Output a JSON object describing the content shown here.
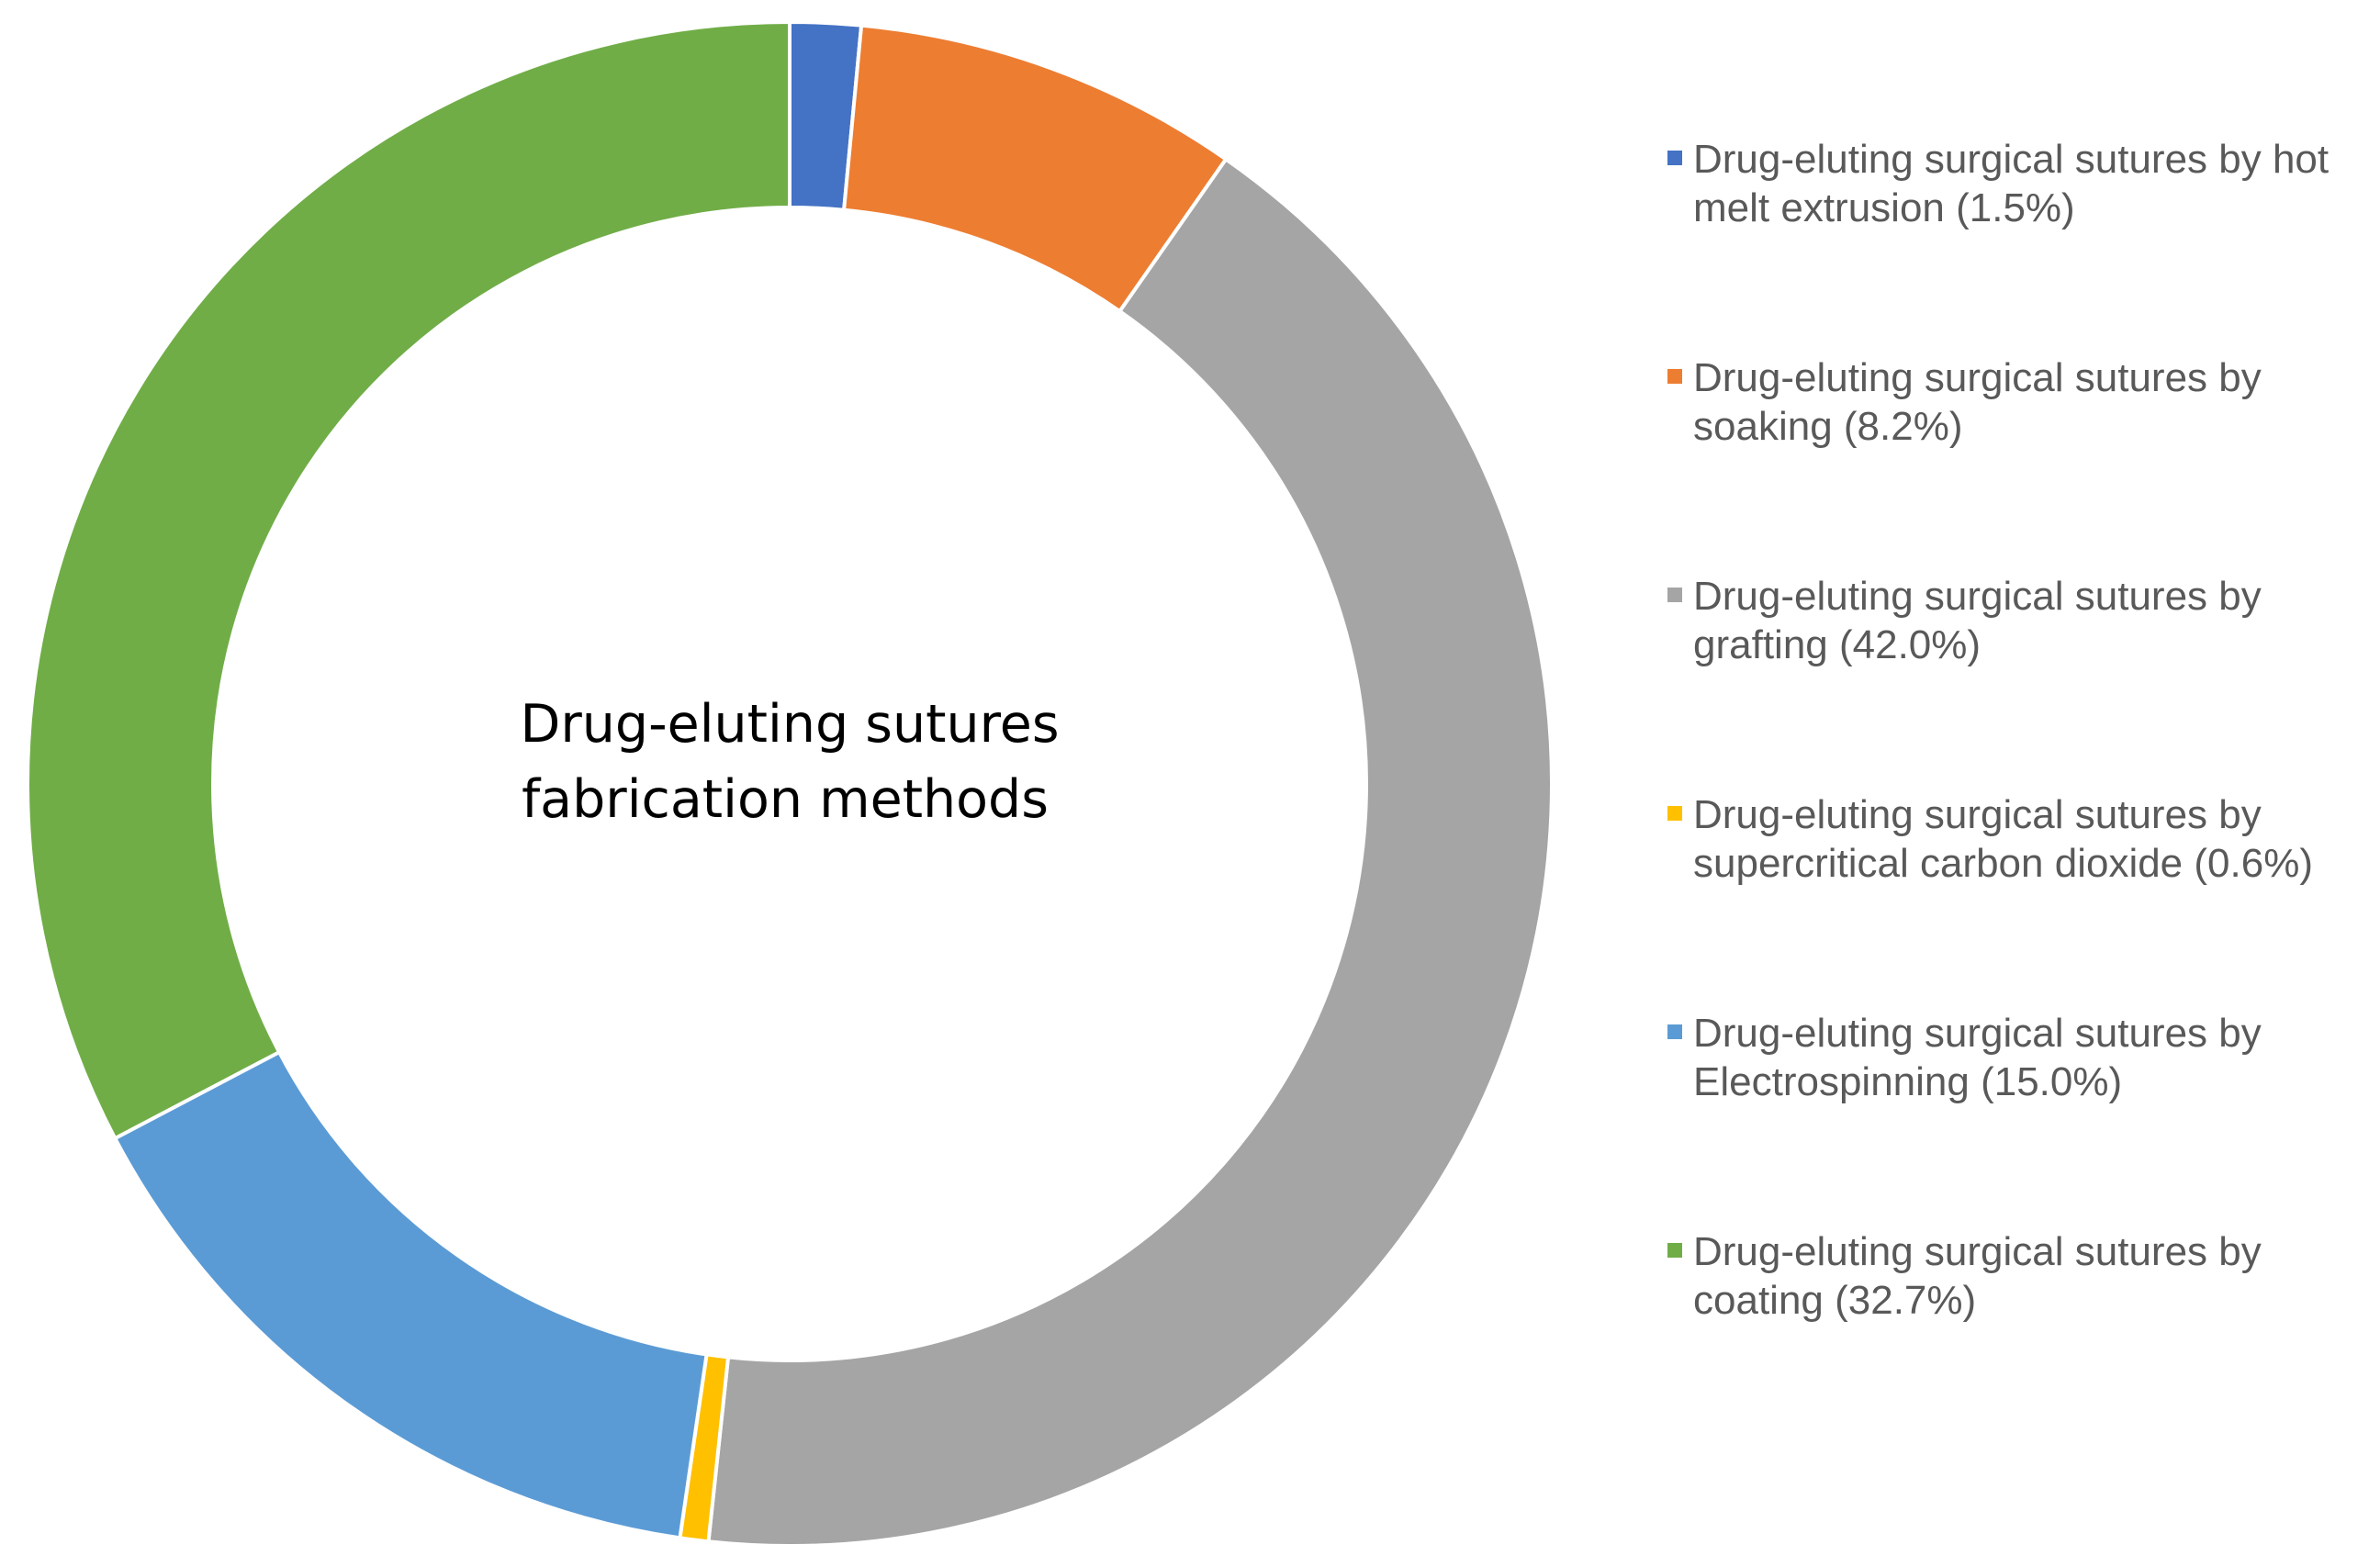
{
  "chart_data": {
    "type": "pie",
    "variant": "doughnut",
    "title": "",
    "center_label": {
      "line1": "Drug-eluting sutures",
      "line2": "fabrication methods"
    },
    "legend_position": "right",
    "slices": [
      {
        "value": 1.5,
        "color": "#4472C4",
        "legend_line1": "Drug-eluting surgical sutures by hot",
        "legend_line2": "melt extrusion (1.5%)"
      },
      {
        "value": 8.2,
        "color": "#ED7D31",
        "legend_line1": "Drug-eluting surgical sutures by",
        "legend_line2": "soaking (8.2%)"
      },
      {
        "value": 42.0,
        "color": "#A5A5A5",
        "legend_line1": "Drug-eluting surgical sutures by",
        "legend_line2": "grafting (42.0%)"
      },
      {
        "value": 0.6,
        "color": "#FFC000",
        "legend_line1": "Drug-eluting surgical sutures by",
        "legend_line2": "supercritical carbon dioxide (0.6%)"
      },
      {
        "value": 15.0,
        "color": "#5B9BD5",
        "legend_line1": "Drug-eluting surgical sutures by",
        "legend_line2": "Electrospinning (15.0%)"
      },
      {
        "value": 32.7,
        "color": "#70AD47",
        "legend_line1": "Drug-eluting surgical sutures by",
        "legend_line2": "coating (32.7%)"
      }
    ]
  }
}
